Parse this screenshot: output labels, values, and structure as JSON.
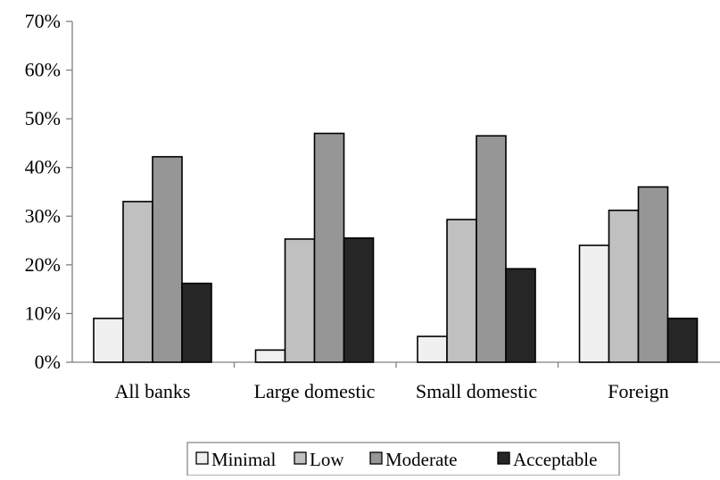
{
  "chart_data": {
    "type": "bar",
    "title": "",
    "xlabel": "",
    "ylabel": "",
    "categories": [
      "All banks",
      "Large domestic",
      "Small domestic",
      "Foreign"
    ],
    "series": [
      {
        "name": "Minimal",
        "values": [
          9,
          2.5,
          5.3,
          24
        ],
        "color": "#f0f0f0"
      },
      {
        "name": "Low",
        "values": [
          33,
          25.3,
          29.3,
          31.2
        ],
        "color": "#c0c0c0"
      },
      {
        "name": "Moderate",
        "values": [
          42.2,
          47,
          46.5,
          36
        ],
        "color": "#969696"
      },
      {
        "name": "Acceptable",
        "values": [
          16.2,
          25.5,
          19.2,
          9
        ],
        "color": "#262626"
      }
    ],
    "ylim": [
      0,
      70
    ],
    "yticks": [
      0,
      10,
      20,
      30,
      40,
      50,
      60,
      70
    ],
    "ytick_labels": [
      "0%",
      "10%",
      "20%",
      "30%",
      "40%",
      "50%",
      "60%",
      "70%"
    ],
    "grid": false,
    "legend": "bottom-center"
  }
}
